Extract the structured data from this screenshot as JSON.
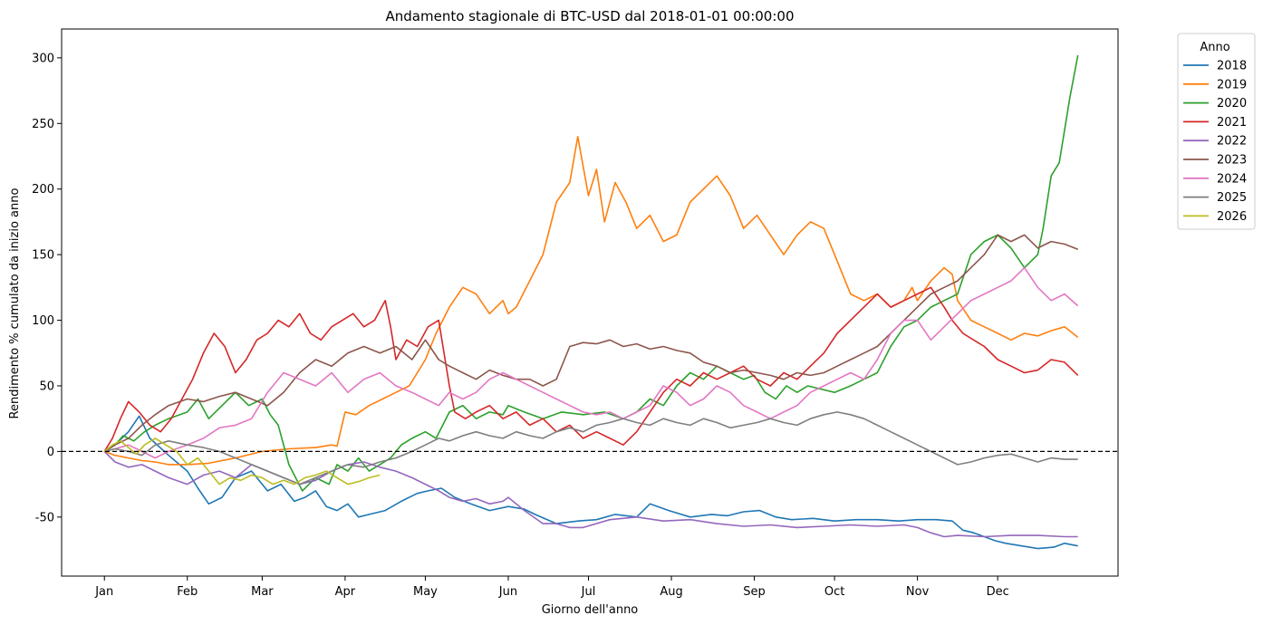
{
  "chart_data": {
    "type": "line",
    "title": "Andamento stagionale di BTC-USD dal 2018-01-01 00:00:00",
    "xlabel": "Giorno dell'anno",
    "ylabel": "Rendimento % cumulato da inizio anno",
    "xlim": [
      -15,
      380
    ],
    "ylim": [
      -95,
      322
    ],
    "grid": false,
    "legend_position": "outside-top-right",
    "legend_title": "Anno",
    "x_ticks": [
      {
        "day": 1,
        "label": "Jan"
      },
      {
        "day": 32,
        "label": "Feb"
      },
      {
        "day": 60,
        "label": "Mar"
      },
      {
        "day": 91,
        "label": "Apr"
      },
      {
        "day": 121,
        "label": "May"
      },
      {
        "day": 152,
        "label": "Jun"
      },
      {
        "day": 182,
        "label": "Jul"
      },
      {
        "day": 213,
        "label": "Aug"
      },
      {
        "day": 244,
        "label": "Sep"
      },
      {
        "day": 274,
        "label": "Oct"
      },
      {
        "day": 305,
        "label": "Nov"
      },
      {
        "day": 335,
        "label": "Dec"
      }
    ],
    "y_ticks": [
      -50,
      0,
      50,
      100,
      150,
      200,
      250,
      300
    ],
    "reference_line": {
      "y": 0,
      "style": "dashed",
      "color": "#000000"
    },
    "series": [
      {
        "name": "2018",
        "color": "#1f77b4",
        "x": [
          1,
          5,
          10,
          14,
          18,
          25,
          32,
          36,
          40,
          45,
          50,
          56,
          62,
          67,
          72,
          76,
          80,
          84,
          88,
          92,
          96,
          100,
          106,
          112,
          118,
          122,
          127,
          132,
          138,
          145,
          152,
          158,
          162,
          170,
          178,
          185,
          192,
          200,
          205,
          212,
          220,
          228,
          234,
          240,
          246,
          252,
          258,
          266,
          274,
          282,
          290,
          298,
          305,
          312,
          318,
          322,
          326,
          330,
          334,
          338,
          344,
          350,
          356,
          360,
          365
        ],
        "y": [
          0,
          5,
          15,
          27,
          10,
          -3,
          -15,
          -28,
          -40,
          -35,
          -20,
          -15,
          -30,
          -25,
          -38,
          -35,
          -30,
          -42,
          -45,
          -40,
          -50,
          -48,
          -45,
          -38,
          -32,
          -30,
          -28,
          -35,
          -40,
          -45,
          -42,
          -44,
          -48,
          -55,
          -53,
          -52,
          -48,
          -50,
          -40,
          -45,
          -50,
          -48,
          -49,
          -46,
          -45,
          -50,
          -52,
          -51,
          -53,
          -52,
          -52,
          -53,
          -52,
          -52,
          -53,
          -60,
          -62,
          -65,
          -68,
          -70,
          -72,
          -74,
          -73,
          -70,
          -72
        ]
      },
      {
        "name": "2019",
        "color": "#ff7f0e",
        "x": [
          1,
          5,
          10,
          15,
          20,
          25,
          32,
          40,
          50,
          60,
          70,
          80,
          86,
          88,
          91,
          95,
          100,
          105,
          110,
          115,
          121,
          125,
          130,
          135,
          140,
          145,
          150,
          152,
          155,
          160,
          165,
          170,
          175,
          178,
          182,
          185,
          188,
          192,
          196,
          200,
          205,
          210,
          215,
          220,
          225,
          230,
          235,
          238,
          240,
          245,
          250,
          255,
          260,
          265,
          270,
          274,
          280,
          285,
          290,
          295,
          300,
          303,
          305,
          310,
          315,
          318,
          320,
          325,
          330,
          335,
          340,
          345,
          350,
          355,
          360,
          365
        ],
        "y": [
          0,
          -3,
          -5,
          -7,
          -8,
          -10,
          -10,
          -9,
          -5,
          0,
          2,
          3,
          5,
          4,
          30,
          28,
          35,
          40,
          45,
          50,
          70,
          90,
          110,
          125,
          120,
          105,
          115,
          105,
          110,
          130,
          150,
          190,
          205,
          240,
          195,
          215,
          175,
          205,
          190,
          170,
          180,
          160,
          165,
          190,
          200,
          210,
          195,
          180,
          170,
          180,
          165,
          150,
          165,
          175,
          170,
          150,
          120,
          115,
          120,
          110,
          115,
          125,
          115,
          130,
          140,
          135,
          115,
          100,
          95,
          90,
          85,
          90,
          88,
          92,
          95,
          87
        ]
      },
      {
        "name": "2020",
        "color": "#2ca02c",
        "x": [
          1,
          5,
          8,
          12,
          16,
          20,
          25,
          32,
          36,
          40,
          45,
          50,
          55,
          60,
          63,
          66,
          70,
          75,
          80,
          85,
          88,
          92,
          96,
          100,
          104,
          108,
          112,
          116,
          121,
          125,
          130,
          135,
          140,
          145,
          150,
          152,
          158,
          165,
          172,
          180,
          188,
          195,
          200,
          205,
          210,
          215,
          220,
          225,
          230,
          235,
          240,
          244,
          248,
          252,
          256,
          260,
          264,
          268,
          274,
          280,
          285,
          290,
          295,
          300,
          305,
          310,
          315,
          320,
          325,
          330,
          335,
          340,
          345,
          350,
          352,
          355,
          358,
          362,
          365
        ],
        "y": [
          0,
          5,
          12,
          8,
          15,
          20,
          25,
          30,
          40,
          25,
          35,
          45,
          35,
          40,
          28,
          20,
          -10,
          -30,
          -20,
          -25,
          -10,
          -15,
          -5,
          -15,
          -10,
          -5,
          5,
          10,
          15,
          10,
          30,
          35,
          25,
          30,
          28,
          35,
          30,
          25,
          30,
          28,
          30,
          25,
          30,
          40,
          35,
          50,
          60,
          55,
          65,
          60,
          55,
          58,
          45,
          40,
          50,
          45,
          50,
          48,
          45,
          50,
          55,
          60,
          80,
          95,
          100,
          110,
          115,
          120,
          150,
          160,
          165,
          155,
          140,
          150,
          170,
          210,
          220,
          270,
          302
        ]
      },
      {
        "name": "2021",
        "color": "#d62728",
        "x": [
          1,
          4,
          7,
          10,
          14,
          18,
          22,
          26,
          30,
          34,
          38,
          42,
          46,
          50,
          54,
          58,
          62,
          66,
          70,
          74,
          78,
          82,
          86,
          90,
          94,
          98,
          102,
          106,
          108,
          110,
          114,
          118,
          122,
          126,
          130,
          132,
          136,
          140,
          145,
          150,
          155,
          160,
          165,
          170,
          175,
          180,
          185,
          190,
          195,
          200,
          205,
          210,
          215,
          220,
          225,
          230,
          235,
          240,
          245,
          250,
          255,
          260,
          265,
          270,
          275,
          280,
          285,
          290,
          295,
          300,
          305,
          310,
          315,
          318,
          322,
          326,
          330,
          335,
          340,
          345,
          350,
          355,
          360,
          365
        ],
        "y": [
          0,
          10,
          25,
          38,
          30,
          20,
          15,
          25,
          40,
          55,
          75,
          90,
          80,
          60,
          70,
          85,
          90,
          100,
          95,
          105,
          90,
          85,
          95,
          100,
          105,
          95,
          100,
          115,
          95,
          70,
          85,
          80,
          95,
          100,
          50,
          30,
          25,
          30,
          35,
          25,
          30,
          20,
          25,
          15,
          20,
          10,
          15,
          10,
          5,
          15,
          30,
          45,
          55,
          50,
          60,
          55,
          60,
          65,
          55,
          50,
          60,
          55,
          65,
          75,
          90,
          100,
          110,
          120,
          110,
          115,
          120,
          125,
          110,
          100,
          90,
          85,
          80,
          70,
          65,
          60,
          62,
          70,
          68,
          58
        ]
      },
      {
        "name": "2022",
        "color": "#9467bd",
        "x": [
          1,
          5,
          10,
          15,
          20,
          25,
          32,
          38,
          44,
          50,
          56,
          62,
          68,
          74,
          80,
          86,
          92,
          98,
          104,
          110,
          116,
          121,
          126,
          130,
          135,
          140,
          145,
          150,
          152,
          158,
          165,
          170,
          175,
          180,
          190,
          200,
          210,
          220,
          230,
          240,
          250,
          260,
          270,
          280,
          290,
          300,
          305,
          310,
          315,
          320,
          330,
          340,
          350,
          360,
          365
        ],
        "y": [
          0,
          -8,
          -12,
          -10,
          -15,
          -20,
          -25,
          -18,
          -15,
          -20,
          -10,
          -15,
          -20,
          -25,
          -22,
          -15,
          -10,
          -8,
          -12,
          -15,
          -20,
          -25,
          -30,
          -35,
          -38,
          -36,
          -40,
          -38,
          -35,
          -45,
          -55,
          -55,
          -58,
          -58,
          -52,
          -50,
          -53,
          -52,
          -55,
          -57,
          -56,
          -58,
          -57,
          -56,
          -57,
          -56,
          -58,
          -62,
          -65,
          -64,
          -65,
          -64,
          -64,
          -65,
          -65
        ]
      },
      {
        "name": "2023",
        "color": "#8c564b",
        "x": [
          1,
          5,
          10,
          15,
          20,
          25,
          32,
          38,
          44,
          50,
          56,
          62,
          68,
          74,
          80,
          86,
          92,
          98,
          104,
          110,
          116,
          121,
          126,
          130,
          135,
          140,
          145,
          150,
          155,
          160,
          165,
          170,
          175,
          180,
          185,
          190,
          195,
          200,
          205,
          210,
          215,
          220,
          225,
          230,
          235,
          240,
          245,
          250,
          255,
          260,
          265,
          270,
          275,
          280,
          285,
          290,
          295,
          300,
          305,
          310,
          315,
          320,
          325,
          330,
          335,
          340,
          345,
          350,
          355,
          360,
          365
        ],
        "y": [
          0,
          5,
          10,
          20,
          28,
          35,
          40,
          38,
          42,
          45,
          40,
          35,
          45,
          60,
          70,
          65,
          75,
          80,
          75,
          80,
          70,
          85,
          70,
          65,
          60,
          55,
          62,
          58,
          55,
          55,
          50,
          55,
          80,
          83,
          82,
          85,
          80,
          82,
          78,
          80,
          77,
          75,
          68,
          65,
          60,
          62,
          60,
          58,
          55,
          60,
          58,
          60,
          65,
          70,
          75,
          80,
          90,
          100,
          110,
          120,
          125,
          130,
          140,
          150,
          165,
          160,
          165,
          155,
          160,
          158,
          154
        ]
      },
      {
        "name": "2024",
        "color": "#e377c2",
        "x": [
          1,
          5,
          10,
          15,
          20,
          25,
          32,
          38,
          44,
          50,
          56,
          62,
          68,
          74,
          80,
          86,
          92,
          98,
          104,
          110,
          116,
          121,
          126,
          130,
          135,
          140,
          145,
          150,
          155,
          160,
          165,
          170,
          175,
          180,
          185,
          190,
          195,
          200,
          205,
          210,
          215,
          220,
          225,
          230,
          235,
          240,
          245,
          250,
          255,
          260,
          265,
          270,
          275,
          280,
          285,
          290,
          295,
          300,
          305,
          310,
          315,
          320,
          325,
          330,
          335,
          340,
          345,
          350,
          355,
          360,
          365
        ],
        "y": [
          0,
          2,
          5,
          0,
          -5,
          0,
          5,
          10,
          18,
          20,
          25,
          45,
          60,
          55,
          50,
          60,
          45,
          55,
          60,
          50,
          45,
          40,
          35,
          45,
          40,
          45,
          55,
          60,
          55,
          50,
          45,
          40,
          35,
          30,
          28,
          30,
          25,
          30,
          35,
          50,
          45,
          35,
          40,
          50,
          45,
          35,
          30,
          25,
          30,
          35,
          45,
          50,
          55,
          60,
          55,
          70,
          90,
          100,
          100,
          85,
          95,
          105,
          115,
          120,
          125,
          130,
          140,
          125,
          115,
          120,
          111
        ]
      },
      {
        "name": "2025",
        "color": "#7f7f7f",
        "x": [
          1,
          5,
          10,
          15,
          20,
          25,
          32,
          38,
          44,
          50,
          56,
          62,
          68,
          74,
          80,
          86,
          92,
          98,
          104,
          110,
          116,
          121,
          126,
          130,
          135,
          140,
          145,
          150,
          155,
          160,
          165,
          170,
          175,
          180,
          185,
          190,
          195,
          200,
          205,
          210,
          215,
          220,
          225,
          230,
          235,
          240,
          245,
          250,
          255,
          260,
          265,
          270,
          275,
          280,
          285,
          290,
          295,
          300,
          305,
          310,
          315,
          320,
          325,
          330,
          335,
          340,
          345,
          350,
          355,
          360,
          365
        ],
        "y": [
          0,
          2,
          0,
          -3,
          5,
          8,
          5,
          3,
          0,
          -5,
          -10,
          -15,
          -20,
          -25,
          -20,
          -15,
          -10,
          -12,
          -8,
          -5,
          0,
          5,
          10,
          8,
          12,
          15,
          12,
          10,
          15,
          12,
          10,
          15,
          18,
          15,
          20,
          22,
          25,
          22,
          20,
          25,
          22,
          20,
          25,
          22,
          18,
          20,
          22,
          25,
          22,
          20,
          25,
          28,
          30,
          28,
          25,
          20,
          15,
          10,
          5,
          0,
          -5,
          -10,
          -8,
          -5,
          -3,
          -2,
          -5,
          -8,
          -5,
          -6,
          -6
        ]
      },
      {
        "name": "2026",
        "color": "#bcbd22",
        "x": [
          1,
          4,
          7,
          10,
          13,
          16,
          20,
          24,
          28,
          32,
          36,
          40,
          44,
          48,
          52,
          56,
          60,
          64,
          68,
          72,
          76,
          80,
          84,
          88,
          92,
          96,
          100,
          104
        ],
        "y": [
          0,
          5,
          8,
          3,
          -2,
          5,
          10,
          5,
          0,
          -10,
          -5,
          -15,
          -25,
          -20,
          -22,
          -18,
          -20,
          -25,
          -22,
          -25,
          -20,
          -18,
          -15,
          -20,
          -25,
          -23,
          -20,
          -18
        ]
      }
    ]
  }
}
